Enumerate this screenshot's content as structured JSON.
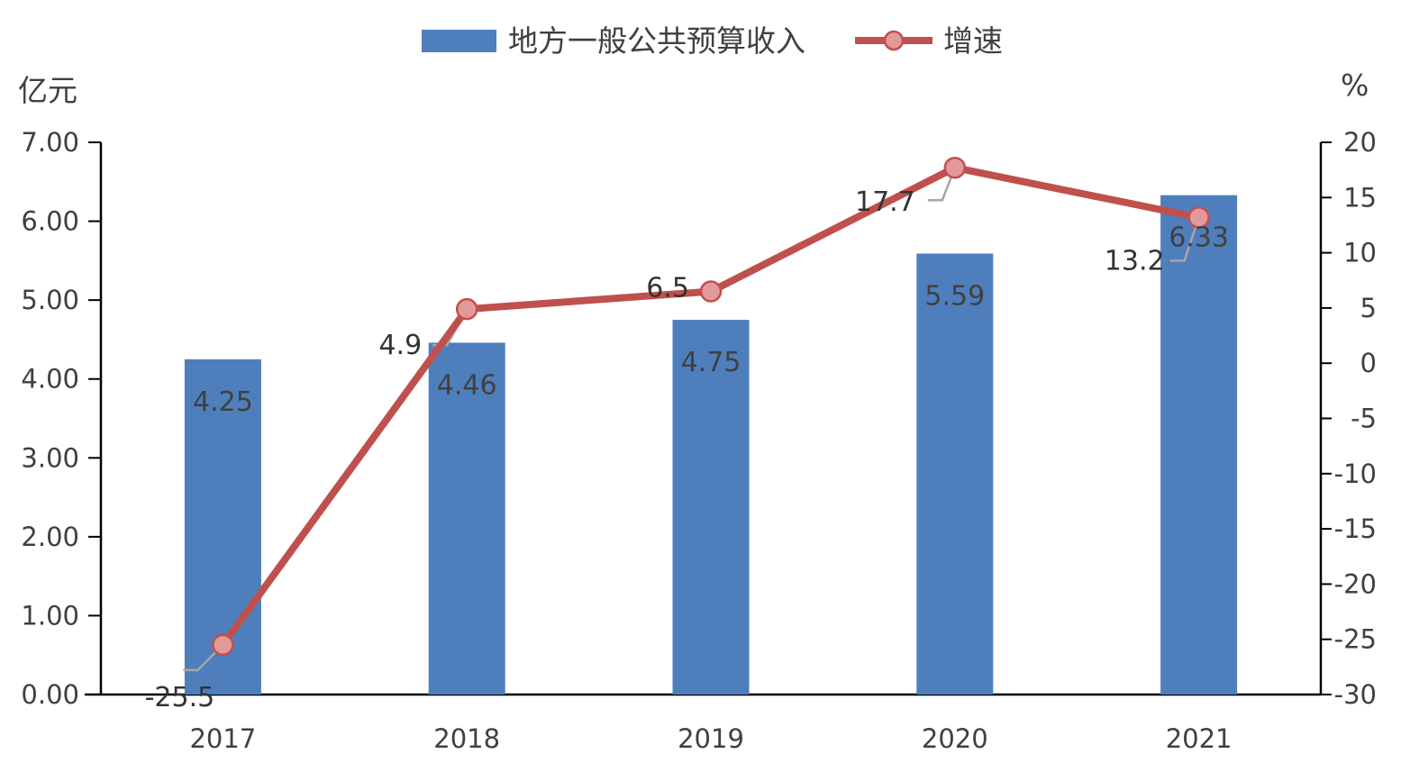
{
  "chart_data": {
    "type": "bar",
    "categories": [
      "2017",
      "2018",
      "2019",
      "2020",
      "2021"
    ],
    "series": [
      {
        "name": "地方一般公共预算收入",
        "type": "bar",
        "axis": "left",
        "values": [
          4.25,
          4.46,
          4.75,
          5.59,
          6.33
        ],
        "labels": [
          "4.25",
          "4.46",
          "4.75",
          "5.59",
          "6.33"
        ],
        "color": "#4E7FBC"
      },
      {
        "name": "增速",
        "type": "line",
        "axis": "right",
        "values": [
          -25.5,
          4.9,
          6.5,
          17.7,
          13.2
        ],
        "labels": [
          "-25.5",
          "4.9",
          "6.5",
          "17.7",
          "13.2"
        ],
        "color": "#C0504D",
        "marker_color": "#E3999A"
      }
    ],
    "y_left": {
      "unit": "亿元",
      "range": [
        0,
        7
      ],
      "ticks": [
        "0.00",
        "1.00",
        "2.00",
        "3.00",
        "4.00",
        "5.00",
        "6.00",
        "7.00"
      ]
    },
    "y_right": {
      "unit": "%",
      "range": [
        -30,
        20
      ],
      "ticks": [
        "-30",
        "-25",
        "-20",
        "-15",
        "-10",
        "-5",
        "0",
        "5",
        "10",
        "15",
        "20"
      ]
    },
    "legend_position": "top-center",
    "grid": false
  }
}
